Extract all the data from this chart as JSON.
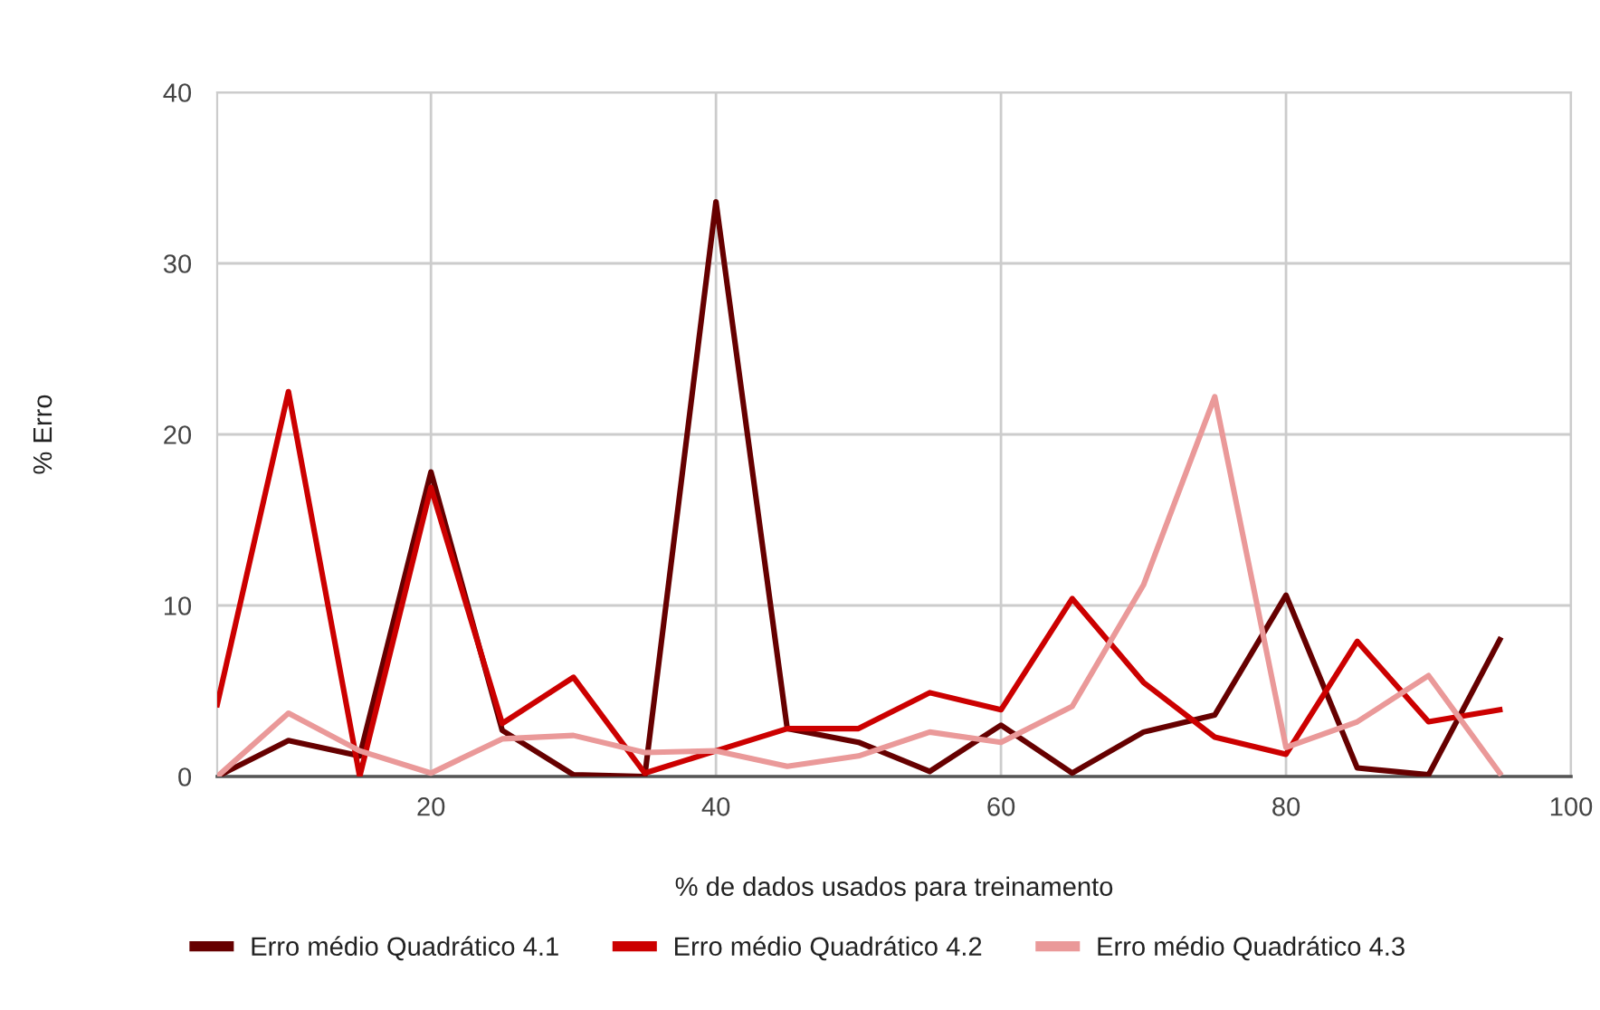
{
  "chart_data": {
    "type": "line",
    "xlabel": "% de dados usados para treinamento",
    "ylabel": "% Erro",
    "x": [
      5,
      10,
      15,
      20,
      25,
      30,
      35,
      40,
      45,
      50,
      55,
      60,
      65,
      70,
      75,
      80,
      85,
      90,
      95
    ],
    "xlim": [
      5,
      100
    ],
    "xticks": [
      20,
      40,
      60,
      80,
      100
    ],
    "ylim": [
      0,
      40
    ],
    "yticks": [
      0,
      10,
      20,
      30,
      40
    ],
    "grid": true,
    "legend": "bottom",
    "line_style": "solid",
    "series": [
      {
        "name": "Erro médio Quadrático 4.1",
        "color": "#660000",
        "values": [
          0,
          2.1,
          1.2,
          17.8,
          2.7,
          0.1,
          0,
          33.6,
          2.8,
          2.0,
          0.3,
          3.0,
          0.2,
          2.6,
          3.6,
          10.6,
          0.5,
          0.1,
          8.0
        ]
      },
      {
        "name": "Erro médio Quadrático 4.2",
        "color": "#cc0000",
        "values": [
          4.2,
          22.5,
          0,
          16.9,
          3.1,
          5.8,
          0.2,
          1.5,
          2.8,
          2.8,
          4.9,
          3.9,
          10.4,
          5.5,
          2.3,
          1.3,
          7.9,
          3.2,
          3.9
        ]
      },
      {
        "name": "Erro médio Quadrático 4.3",
        "color": "#ea9999",
        "values": [
          0,
          3.7,
          1.5,
          0.2,
          2.2,
          2.4,
          1.4,
          1.5,
          0.6,
          1.2,
          2.6,
          2.0,
          4.1,
          11.2,
          22.2,
          1.7,
          3.2,
          5.9,
          0.2
        ]
      }
    ]
  }
}
